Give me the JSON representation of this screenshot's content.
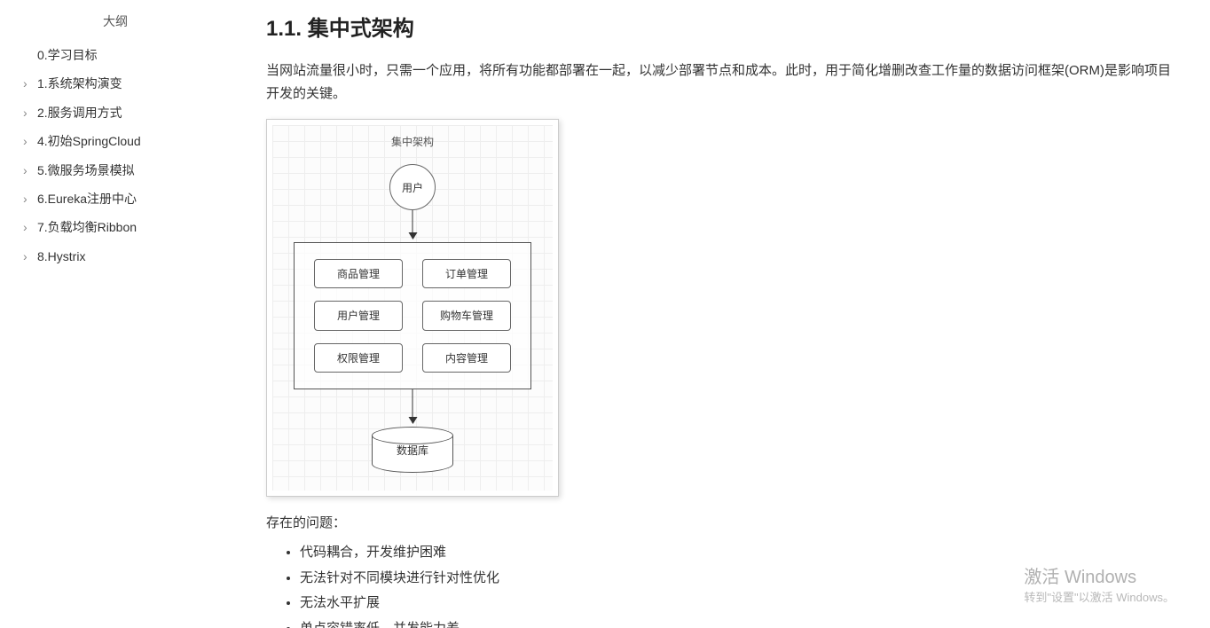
{
  "sidebar": {
    "title": "大纲",
    "items": [
      {
        "label": "0.学习目标",
        "has_children": false
      },
      {
        "label": "1.系统架构演变",
        "has_children": true
      },
      {
        "label": "2.服务调用方式",
        "has_children": true
      },
      {
        "label": "4.初始SpringCloud",
        "has_children": true
      },
      {
        "label": "5.微服务场景模拟",
        "has_children": true
      },
      {
        "label": "6.Eureka注册中心",
        "has_children": true
      },
      {
        "label": "7.负载均衡Ribbon",
        "has_children": true
      },
      {
        "label": "8.Hystrix",
        "has_children": true
      }
    ]
  },
  "content": {
    "heading": "1.1. 集中式架构",
    "paragraph": "当网站流量很小时，只需一个应用，将所有功能都部署在一起，以减少部署节点和成本。此时，用于简化增删改查工作量的数据访问框架(ORM)是影响项目开发的关键。",
    "diagram": {
      "title": "集中架构",
      "user_node": "用户",
      "modules": [
        "商品管理",
        "订单管理",
        "用户管理",
        "购物车管理",
        "权限管理",
        "内容管理"
      ],
      "db_node": "数据库",
      "colors": {
        "border": "#555555",
        "grid": "#eeeeee",
        "text": "#333333",
        "bg": "#ffffff"
      }
    },
    "problems_label": "存在的问题：",
    "problems": [
      "代码耦合，开发维护困难",
      "无法针对不同模块进行针对性优化",
      "无法水平扩展",
      "单点容错率低，并发能力差"
    ]
  },
  "watermark": {
    "title": "激活 Windows",
    "subtitle": "转到\"设置\"以激活 Windows。"
  }
}
